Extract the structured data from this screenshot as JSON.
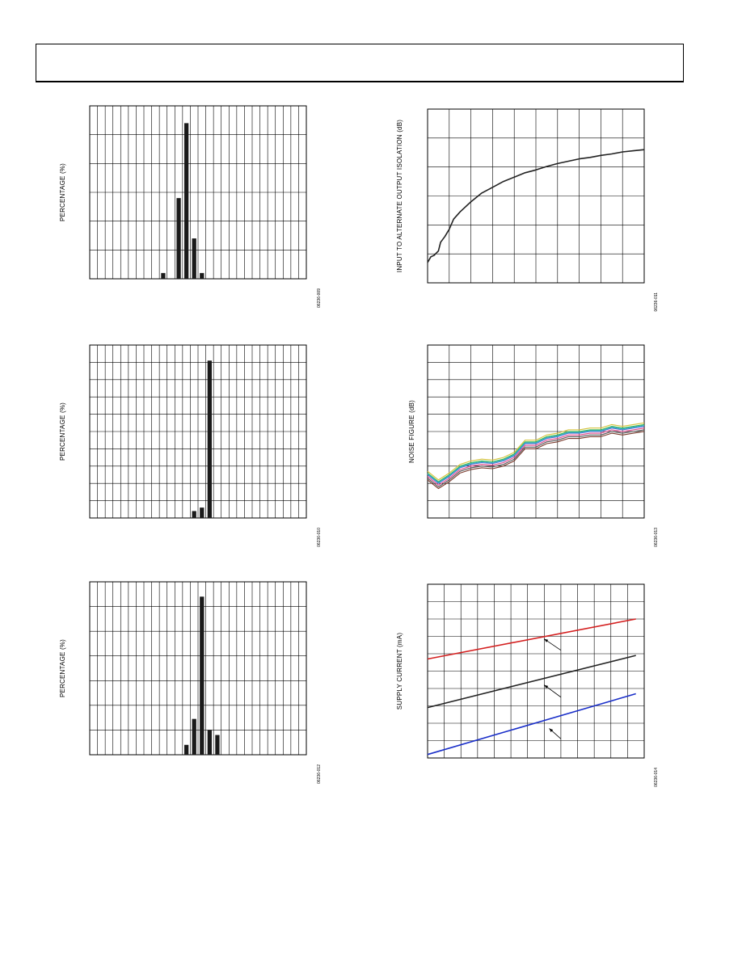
{
  "chart_data": [
    {
      "id": "c1",
      "type": "bar",
      "ylabel": "PERCENTAGE (%)",
      "fig_id": "06236-009",
      "xlim": [
        0,
        28
      ],
      "ylim": [
        0,
        6
      ],
      "x_divisions": 28,
      "y_divisions": 6,
      "bar_width": 0.55,
      "bars": [
        {
          "x": 9.5,
          "value": 0.2
        },
        {
          "x": 11.5,
          "value": 2.8
        },
        {
          "x": 12.5,
          "value": 5.4
        },
        {
          "x": 13.5,
          "value": 1.4
        },
        {
          "x": 14.5,
          "value": 0.2
        }
      ]
    },
    {
      "id": "c2",
      "type": "bar",
      "ylabel": "PERCENTAGE (%)",
      "fig_id": "06236-010",
      "xlim": [
        0,
        28
      ],
      "ylim": [
        0,
        10
      ],
      "x_divisions": 28,
      "y_divisions": 10,
      "bar_width": 0.55,
      "bars": [
        {
          "x": 13.5,
          "value": 0.4
        },
        {
          "x": 14.5,
          "value": 0.6
        },
        {
          "x": 15.5,
          "value": 9.1
        }
      ]
    },
    {
      "id": "c3",
      "type": "bar",
      "ylabel": "PERCENTAGE (%)",
      "fig_id": "06236-012",
      "xlim": [
        0,
        28
      ],
      "ylim": [
        0,
        7
      ],
      "x_divisions": 28,
      "y_divisions": 7,
      "bar_width": 0.55,
      "bars": [
        {
          "x": 12.5,
          "value": 0.4
        },
        {
          "x": 13.5,
          "value": 1.45
        },
        {
          "x": 14.5,
          "value": 6.4
        },
        {
          "x": 15.5,
          "value": 1.0
        },
        {
          "x": 16.5,
          "value": 0.8
        }
      ]
    },
    {
      "id": "c4",
      "type": "line",
      "ylabel": "INPUT TO ALTERNATE OUTPUT ISOLATION (dB)",
      "fig_id": "06236-011",
      "xlim": [
        0,
        10
      ],
      "ylim": [
        0,
        6
      ],
      "x_divisions": 10,
      "y_divisions": 6,
      "series": [
        {
          "color": "#222222",
          "x": [
            0,
            0.15,
            0.3,
            0.5,
            0.6,
            0.8,
            1.0,
            1.2,
            1.5,
            2.0,
            2.5,
            3.0,
            3.5,
            4.0,
            4.5,
            5.0,
            5.5,
            6.0,
            6.5,
            7.0,
            7.5,
            8.0,
            8.5,
            9.0,
            9.5,
            10.0
          ],
          "y": [
            0.7,
            0.9,
            0.95,
            1.1,
            1.4,
            1.6,
            1.85,
            2.2,
            2.45,
            2.8,
            3.1,
            3.3,
            3.5,
            3.65,
            3.8,
            3.9,
            4.02,
            4.12,
            4.2,
            4.28,
            4.33,
            4.4,
            4.45,
            4.52,
            4.56,
            4.6
          ]
        }
      ]
    },
    {
      "id": "c5",
      "type": "line",
      "ylabel": "NOISE FIGURE (dB)",
      "fig_id": "06236-013",
      "xlim": [
        0,
        10
      ],
      "ylim": [
        0,
        10
      ],
      "x_divisions": 10,
      "y_divisions": 10,
      "series": [
        {
          "color": "#e0458a",
          "x": [
            0,
            0.5,
            1,
            1.5,
            2,
            2.5,
            3,
            3.5,
            4,
            4.5,
            5,
            5.5,
            6,
            6.5,
            7,
            7.5,
            8,
            8.5,
            9,
            9.5,
            10
          ],
          "y": [
            2.4,
            1.9,
            2.3,
            2.8,
            3.0,
            3.1,
            3.05,
            3.2,
            3.5,
            4.2,
            4.2,
            4.5,
            4.6,
            4.8,
            4.8,
            4.9,
            4.9,
            5.1,
            5.0,
            5.1,
            5.2
          ]
        },
        {
          "color": "#3ab54a",
          "x": [
            0,
            0.5,
            1,
            1.5,
            2,
            2.5,
            3,
            3.5,
            4,
            4.5,
            5,
            5.5,
            6,
            6.5,
            7,
            7.5,
            8,
            8.5,
            9,
            9.5,
            10
          ],
          "y": [
            2.6,
            2.1,
            2.5,
            3.0,
            3.2,
            3.3,
            3.25,
            3.4,
            3.7,
            4.4,
            4.4,
            4.7,
            4.8,
            5.0,
            5.0,
            5.1,
            5.1,
            5.3,
            5.2,
            5.3,
            5.4
          ]
        },
        {
          "color": "#4a6fd1",
          "x": [
            0,
            0.5,
            1,
            1.5,
            2,
            2.5,
            3,
            3.5,
            4,
            4.5,
            5,
            5.5,
            6,
            6.5,
            7,
            7.5,
            8,
            8.5,
            9,
            9.5,
            10
          ],
          "y": [
            2.5,
            2.0,
            2.4,
            2.9,
            3.1,
            3.2,
            3.15,
            3.3,
            3.6,
            4.3,
            4.3,
            4.6,
            4.7,
            4.9,
            4.9,
            5.0,
            5.0,
            5.2,
            5.1,
            5.2,
            5.3
          ]
        },
        {
          "color": "#7a3b2e",
          "x": [
            0,
            0.5,
            1,
            1.5,
            2,
            2.5,
            3,
            3.5,
            4,
            4.5,
            5,
            5.5,
            6,
            6.5,
            7,
            7.5,
            8,
            8.5,
            9,
            9.5,
            10
          ],
          "y": [
            2.2,
            1.7,
            2.1,
            2.6,
            2.8,
            2.9,
            2.85,
            3.0,
            3.3,
            4.0,
            4.0,
            4.3,
            4.4,
            4.6,
            4.6,
            4.7,
            4.7,
            4.9,
            4.8,
            4.9,
            5.0
          ]
        },
        {
          "color": "#d4c23a",
          "x": [
            0,
            0.5,
            1,
            1.5,
            2,
            2.5,
            3,
            3.5,
            4,
            4.5,
            5,
            5.5,
            6,
            6.5,
            7,
            7.5,
            8,
            8.5,
            9,
            9.5,
            10
          ],
          "y": [
            2.7,
            2.2,
            2.6,
            3.1,
            3.3,
            3.4,
            3.35,
            3.5,
            3.8,
            4.5,
            4.5,
            4.8,
            4.9,
            5.1,
            5.1,
            5.2,
            5.2,
            5.4,
            5.3,
            5.4,
            5.5
          ]
        },
        {
          "color": "#2fb3c9",
          "x": [
            0,
            0.5,
            1,
            1.5,
            2,
            2.5,
            3,
            3.5,
            4,
            4.5,
            5,
            5.5,
            6,
            6.5,
            7,
            7.5,
            8,
            8.5,
            9,
            9.5,
            10
          ],
          "y": [
            2.55,
            2.05,
            2.45,
            2.95,
            3.15,
            3.25,
            3.2,
            3.35,
            3.65,
            4.35,
            4.35,
            4.65,
            4.75,
            4.95,
            4.95,
            5.05,
            5.05,
            5.25,
            5.15,
            5.25,
            5.35
          ]
        },
        {
          "color": "#555555",
          "x": [
            0,
            0.5,
            1,
            1.5,
            2,
            2.5,
            3,
            3.5,
            4,
            4.5,
            5,
            5.5,
            6,
            6.5,
            7,
            7.5,
            8,
            8.5,
            9,
            9.5,
            10
          ],
          "y": [
            2.3,
            1.8,
            2.2,
            2.7,
            2.9,
            3.0,
            2.95,
            3.1,
            3.4,
            4.1,
            4.1,
            4.4,
            4.5,
            4.7,
            4.7,
            4.8,
            4.8,
            5.0,
            4.9,
            5.0,
            5.1
          ]
        }
      ]
    },
    {
      "id": "c6",
      "type": "line",
      "ylabel": "SUPPLY CURRENT (mA)",
      "fig_id": "06236-014",
      "xlim": [
        0,
        13
      ],
      "ylim": [
        0,
        10
      ],
      "x_divisions": 13,
      "y_divisions": 10,
      "series": [
        {
          "color": "#d42020",
          "x": [
            0,
            12.5
          ],
          "y": [
            5.7,
            8.0
          ]
        },
        {
          "color": "#222222",
          "x": [
            0,
            12.5
          ],
          "y": [
            2.9,
            5.9
          ]
        },
        {
          "color": "#1a2fc9",
          "x": [
            0,
            12.5
          ],
          "y": [
            0.2,
            3.7
          ]
        }
      ],
      "arrows": [
        {
          "from": [
            8.0,
            6.2
          ],
          "to": [
            7.0,
            6.85
          ]
        },
        {
          "from": [
            8.0,
            3.5
          ],
          "to": [
            7.0,
            4.2
          ]
        },
        {
          "from": [
            8.0,
            1.1
          ],
          "to": [
            7.3,
            1.7
          ]
        }
      ]
    }
  ]
}
